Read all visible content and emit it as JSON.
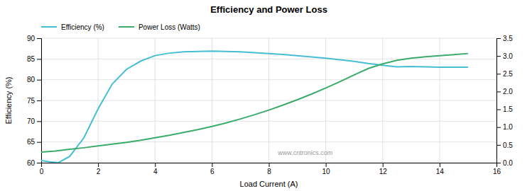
{
  "chart_data": {
    "type": "line",
    "title": "Efficiency and Power Loss",
    "xlabel": "Load Current (A)",
    "ylabel": "Efficiency (%)",
    "xlim": [
      0,
      16
    ],
    "ylim": [
      60,
      90
    ],
    "y2lim": [
      0.0,
      3.5
    ],
    "xticks": [
      0,
      2,
      4,
      6,
      8,
      10,
      12,
      14,
      16
    ],
    "yticks": [
      60,
      65,
      70,
      75,
      80,
      85,
      90
    ],
    "y2ticks": [
      {
        "value": 0.0,
        "label": "0.0"
      },
      {
        "value": 0.5,
        "label": "0.5"
      },
      {
        "value": 1.0,
        "label": "1.0"
      },
      {
        "value": 1.5,
        "label": "1.5"
      },
      {
        "value": 2.0,
        "label": "2.0"
      },
      {
        "value": 2.5,
        "label": "2.5"
      },
      {
        "value": 3.0,
        "label": "3.0"
      },
      {
        "value": 3.5,
        "label": "3.5"
      }
    ],
    "grid": true,
    "legend": "top",
    "annotations": [
      "www.cntronics.com"
    ],
    "series": [
      {
        "name": "Efficiency (%)",
        "color": "#45BED4",
        "x": [
          0,
          0.3,
          0.6,
          1.0,
          1.5,
          2.0,
          2.5,
          3.0,
          3.5,
          4.0,
          4.5,
          5.0,
          5.5,
          6.0,
          6.5,
          7.0,
          7.5,
          8.0,
          8.5,
          9.0,
          9.5,
          10.0,
          10.5,
          11.0,
          11.5,
          12.0,
          12.5,
          13.0,
          13.5,
          14.0,
          14.5,
          15.0
        ],
        "values": [
          60.5,
          60.2,
          60.0,
          61.5,
          66.0,
          73.0,
          79.0,
          82.5,
          84.5,
          85.8,
          86.4,
          86.7,
          86.8,
          86.9,
          86.8,
          86.7,
          86.5,
          86.3,
          86.1,
          85.8,
          85.5,
          85.2,
          84.8,
          84.4,
          83.9,
          83.5,
          83.1,
          83.2,
          83.1,
          83.0,
          83.0,
          83.0
        ]
      },
      {
        "name": "Power Loss (Watts)",
        "color": "#3AAB6A",
        "axis": "y2",
        "x": [
          0,
          0.5,
          1.0,
          1.5,
          2.0,
          2.5,
          3.0,
          3.5,
          4.0,
          4.5,
          5.0,
          5.5,
          6.0,
          6.5,
          7.0,
          7.5,
          8.0,
          8.5,
          9.0,
          9.5,
          10.0,
          10.5,
          11.0,
          11.5,
          12.0,
          12.5,
          13.0,
          13.5,
          14.0,
          14.5,
          15.0
        ],
        "values": [
          0.3,
          0.33,
          0.38,
          0.42,
          0.47,
          0.52,
          0.57,
          0.63,
          0.7,
          0.77,
          0.85,
          0.93,
          1.02,
          1.12,
          1.23,
          1.35,
          1.48,
          1.62,
          1.77,
          1.93,
          2.1,
          2.28,
          2.47,
          2.65,
          2.78,
          2.88,
          2.94,
          2.98,
          3.01,
          3.04,
          3.07
        ]
      }
    ]
  }
}
